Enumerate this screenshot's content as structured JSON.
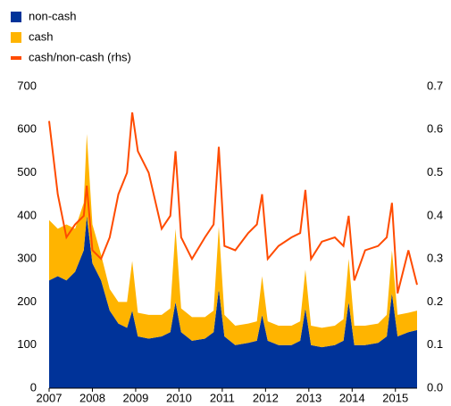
{
  "chart_data": {
    "type": "stacked-area-line",
    "x": [
      2007,
      2007.2,
      2007.4,
      2007.6,
      2007.8,
      2007.87,
      2008.0,
      2008.2,
      2008.4,
      2008.6,
      2008.8,
      2008.92,
      2009.05,
      2009.3,
      2009.6,
      2009.8,
      2009.92,
      2010.05,
      2010.3,
      2010.6,
      2010.8,
      2010.92,
      2011.05,
      2011.3,
      2011.6,
      2011.8,
      2011.92,
      2012.05,
      2012.3,
      2012.6,
      2012.8,
      2012.92,
      2013.05,
      2013.3,
      2013.6,
      2013.8,
      2013.92,
      2014.05,
      2014.3,
      2014.6,
      2014.8,
      2014.92,
      2015.05,
      2015.3,
      2015.5
    ],
    "series": [
      {
        "name": "non-cash",
        "color": "#003399",
        "stack": true,
        "values": [
          250,
          260,
          250,
          270,
          320,
          400,
          290,
          250,
          180,
          150,
          140,
          180,
          120,
          115,
          120,
          130,
          200,
          130,
          110,
          115,
          130,
          230,
          120,
          100,
          105,
          110,
          170,
          110,
          100,
          100,
          110,
          185,
          100,
          95,
          100,
          110,
          200,
          100,
          100,
          105,
          120,
          220,
          120,
          130,
          135
        ]
      },
      {
        "name": "cash",
        "color": "#ffb400",
        "stack": true,
        "values": [
          140,
          110,
          130,
          100,
          110,
          190,
          90,
          60,
          50,
          50,
          60,
          115,
          55,
          55,
          50,
          55,
          170,
          55,
          55,
          50,
          50,
          145,
          50,
          45,
          45,
          45,
          90,
          45,
          45,
          45,
          45,
          90,
          45,
          45,
          45,
          50,
          100,
          45,
          45,
          45,
          50,
          100,
          50,
          45,
          45
        ]
      },
      {
        "name": "cash/non-cash (rhs)",
        "color": "#ff4b00",
        "axis": "y2",
        "values": [
          0.62,
          0.45,
          0.35,
          0.38,
          0.4,
          0.47,
          0.32,
          0.3,
          0.35,
          0.45,
          0.5,
          0.64,
          0.55,
          0.5,
          0.37,
          0.4,
          0.55,
          0.35,
          0.3,
          0.35,
          0.38,
          0.56,
          0.33,
          0.32,
          0.36,
          0.38,
          0.45,
          0.3,
          0.33,
          0.35,
          0.36,
          0.46,
          0.3,
          0.34,
          0.35,
          0.33,
          0.4,
          0.25,
          0.32,
          0.33,
          0.35,
          0.43,
          0.22,
          0.32,
          0.24
        ]
      }
    ],
    "xlim": [
      2007,
      2015.5
    ],
    "xticks": [
      2007,
      2008,
      2009,
      2010,
      2011,
      2012,
      2013,
      2014,
      2015
    ],
    "ylim": [
      0,
      700
    ],
    "yticks": [
      0,
      100,
      200,
      300,
      400,
      500,
      600,
      700
    ],
    "y2lim": [
      0,
      0.7
    ],
    "y2ticks": [
      {
        "value": 0,
        "label": "0.0"
      },
      0.1,
      0.2,
      0.3,
      0.4,
      0.5,
      0.6,
      0.7
    ],
    "legend": "top-left"
  }
}
